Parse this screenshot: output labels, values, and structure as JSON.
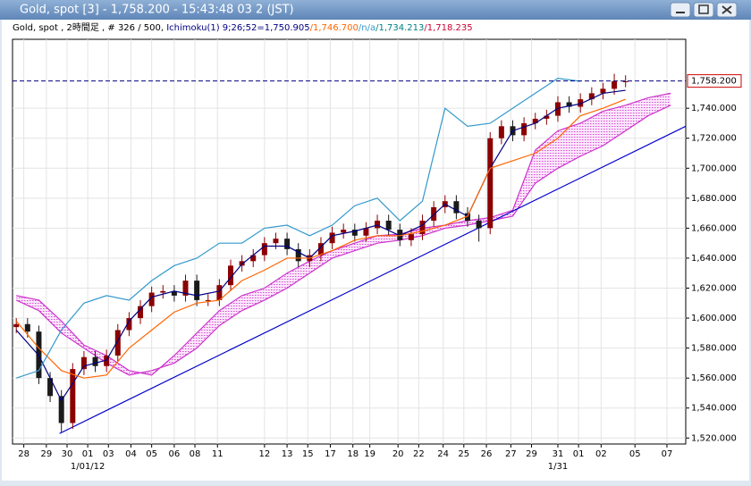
{
  "window_title": "Gold, spot [3] - 1,758.200 - 15:43:48  03 2 (JST)",
  "chart_data": {
    "type": "candlestick",
    "info": [
      {
        "text": "Gold, spot , 2時間足 , # 326 / 500, ",
        "color": "#000000"
      },
      {
        "text": "Ichimoku(1) 9;26;52=1,750.905",
        "color": "#000080"
      },
      {
        "text": "/1,746.700",
        "color": "#ff6600"
      },
      {
        "text": "/n/a",
        "color": "#3399cc"
      },
      {
        "text": "/1,734.213",
        "color": "#008080"
      },
      {
        "text": "/1,718.235",
        "color": "#cc0033"
      }
    ],
    "xlim": [
      -2,
      356
    ],
    "ylim": [
      1516,
      1786
    ],
    "xticks": [
      {
        "value": 4,
        "label": "28"
      },
      {
        "value": 16,
        "label": "29"
      },
      {
        "value": 27,
        "label": "30"
      },
      {
        "value": 38,
        "label": "01"
      },
      {
        "value": 49,
        "label": "03"
      },
      {
        "value": 61,
        "label": "04"
      },
      {
        "value": 72,
        "label": "05"
      },
      {
        "value": 84,
        "label": "06"
      },
      {
        "value": 95,
        "label": "08"
      },
      {
        "value": 107,
        "label": "11"
      },
      {
        "value": 132,
        "label": "12"
      },
      {
        "value": 144,
        "label": "13"
      },
      {
        "value": 155,
        "label": "15"
      },
      {
        "value": 167,
        "label": "17"
      },
      {
        "value": 179,
        "label": "18"
      },
      {
        "value": 188,
        "label": "19"
      },
      {
        "value": 203,
        "label": "20"
      },
      {
        "value": 214,
        "label": "22"
      },
      {
        "value": 227,
        "label": "24"
      },
      {
        "value": 238,
        "label": "25"
      },
      {
        "value": 250,
        "label": "26"
      },
      {
        "value": 263,
        "label": "27"
      },
      {
        "value": 274,
        "label": "29"
      },
      {
        "value": 288,
        "label": "31"
      },
      {
        "value": 299,
        "label": "01"
      },
      {
        "value": 311,
        "label": "02"
      },
      {
        "value": 329,
        "label": "05"
      },
      {
        "value": 346,
        "label": "07"
      }
    ],
    "xticks_major": [
      {
        "value": 38,
        "label": "1/01/12"
      },
      {
        "value": 288,
        "label": "1/31"
      }
    ],
    "yticks": [
      {
        "value": 1520,
        "label": "1,520.000"
      },
      {
        "value": 1540,
        "label": "1,540.000"
      },
      {
        "value": 1560,
        "label": "1,560.000"
      },
      {
        "value": 1580,
        "label": "1,580.000"
      },
      {
        "value": 1600,
        "label": "1,600.000"
      },
      {
        "value": 1620,
        "label": "1,620.000"
      },
      {
        "value": 1640,
        "label": "1,640.000"
      },
      {
        "value": 1660,
        "label": "1,660.000"
      },
      {
        "value": 1680,
        "label": "1,680.000"
      },
      {
        "value": 1700,
        "label": "1,700.000"
      },
      {
        "value": 1720,
        "label": "1,720.000"
      },
      {
        "value": 1740,
        "label": "1,740.000"
      }
    ],
    "grid": true,
    "last_price": {
      "value": 1758.2,
      "label": "1,758.200",
      "color": "#000080"
    },
    "candles": {
      "up_color": "#8b0000",
      "down_color": "#1a1a1a",
      "x": [
        0,
        6,
        12,
        18,
        24,
        30,
        36,
        42,
        48,
        54,
        60,
        66,
        72,
        78,
        84,
        90,
        96,
        102,
        108,
        114,
        120,
        126,
        132,
        138,
        144,
        150,
        156,
        162,
        168,
        174,
        180,
        186,
        192,
        198,
        204,
        210,
        216,
        222,
        228,
        234,
        240,
        246,
        252,
        258,
        264,
        270,
        276,
        282,
        288,
        294,
        300,
        306,
        312,
        318,
        324
      ],
      "open": [
        1594,
        1596,
        1591,
        1560,
        1548,
        1530,
        1566,
        1574,
        1568,
        1575,
        1592,
        1600,
        1608,
        1617,
        1618,
        1615,
        1625,
        1612,
        1612,
        1622,
        1635,
        1638,
        1642,
        1650,
        1653,
        1646,
        1638,
        1642,
        1650,
        1657,
        1659,
        1655,
        1660,
        1665,
        1659,
        1652,
        1656,
        1665,
        1674,
        1678,
        1670,
        1665,
        1660,
        1720,
        1728,
        1722,
        1730,
        1733,
        1735,
        1744,
        1741,
        1746,
        1750,
        1753,
        1758
      ],
      "high": [
        1600,
        1600,
        1595,
        1564,
        1552,
        1570,
        1578,
        1578,
        1579,
        1596,
        1604,
        1612,
        1621,
        1622,
        1622,
        1629,
        1629,
        1616,
        1626,
        1639,
        1642,
        1646,
        1654,
        1657,
        1657,
        1650,
        1646,
        1654,
        1661,
        1663,
        1663,
        1664,
        1669,
        1669,
        1663,
        1660,
        1669,
        1678,
        1682,
        1682,
        1674,
        1669,
        1724,
        1732,
        1732,
        1734,
        1737,
        1739,
        1748,
        1748,
        1750,
        1754,
        1757,
        1763,
        1762
      ],
      "low": [
        1590,
        1587,
        1556,
        1544,
        1524,
        1526,
        1562,
        1564,
        1564,
        1571,
        1588,
        1596,
        1604,
        1613,
        1611,
        1611,
        1608,
        1608,
        1608,
        1618,
        1631,
        1634,
        1638,
        1646,
        1642,
        1634,
        1634,
        1638,
        1646,
        1653,
        1651,
        1651,
        1656,
        1655,
        1648,
        1648,
        1652,
        1661,
        1670,
        1666,
        1661,
        1651,
        1656,
        1716,
        1718,
        1718,
        1726,
        1729,
        1731,
        1737,
        1737,
        1742,
        1746,
        1749,
        1754
      ],
      "close": [
        1596,
        1591,
        1560,
        1548,
        1530,
        1566,
        1574,
        1568,
        1575,
        1592,
        1600,
        1608,
        1617,
        1618,
        1615,
        1625,
        1612,
        1612,
        1622,
        1635,
        1638,
        1642,
        1650,
        1653,
        1646,
        1638,
        1642,
        1650,
        1657,
        1659,
        1655,
        1660,
        1665,
        1659,
        1652,
        1656,
        1665,
        1674,
        1678,
        1670,
        1665,
        1660,
        1720,
        1728,
        1722,
        1730,
        1733,
        1735,
        1744,
        1741,
        1746,
        1750,
        1753,
        1758,
        1758
      ]
    },
    "series": [
      {
        "color": "#000080",
        "x": [
          0,
          12,
          24,
          36,
          48,
          60,
          72,
          84,
          96,
          108,
          120,
          132,
          144,
          156,
          168,
          180,
          192,
          204,
          216,
          228,
          240,
          252,
          264,
          276,
          288,
          300,
          312,
          324
        ],
        "values": [
          1592,
          1575,
          1545,
          1568,
          1572,
          1598,
          1614,
          1618,
          1615,
          1618,
          1636,
          1648,
          1648,
          1640,
          1655,
          1658,
          1662,
          1655,
          1662,
          1676,
          1668,
          1700,
          1725,
          1730,
          1740,
          1743,
          1750,
          1752
        ]
      },
      {
        "color": "#ff6600",
        "x": [
          0,
          12,
          24,
          36,
          48,
          60,
          72,
          84,
          96,
          108,
          120,
          132,
          144,
          156,
          168,
          180,
          192,
          204,
          216,
          228,
          240,
          252,
          264,
          276,
          288,
          300,
          312,
          324
        ],
        "values": [
          1598,
          1580,
          1565,
          1560,
          1562,
          1580,
          1592,
          1604,
          1610,
          1612,
          1625,
          1632,
          1640,
          1640,
          1645,
          1652,
          1655,
          1655,
          1658,
          1662,
          1668,
          1700,
          1705,
          1710,
          1720,
          1735,
          1740,
          1746
        ]
      },
      {
        "color": "#3399cc",
        "x": [
          0,
          12,
          24,
          36,
          48,
          60,
          72,
          84,
          96,
          108,
          120,
          132,
          144,
          156,
          168,
          180,
          192,
          204,
          216,
          228,
          240,
          252,
          264,
          276,
          288,
          300
        ],
        "values": [
          1560,
          1565,
          1592,
          1610,
          1615,
          1612,
          1625,
          1635,
          1640,
          1650,
          1650,
          1660,
          1662,
          1655,
          1662,
          1675,
          1680,
          1665,
          1678,
          1740,
          1728,
          1730,
          1740,
          1750,
          1760,
          1758
        ]
      }
    ],
    "cloud": {
      "color": "#cc33cc",
      "x": [
        0,
        12,
        24,
        36,
        48,
        60,
        72,
        84,
        96,
        108,
        120,
        132,
        144,
        156,
        168,
        180,
        192,
        204,
        216,
        228,
        240,
        252,
        264,
        276,
        288,
        300,
        312,
        324,
        336,
        348
      ],
      "span_a": [
        1615,
        1612,
        1598,
        1582,
        1575,
        1565,
        1562,
        1575,
        1590,
        1605,
        1615,
        1620,
        1630,
        1638,
        1645,
        1650,
        1655,
        1656,
        1660,
        1662,
        1665,
        1667,
        1672,
        1712,
        1725,
        1730,
        1738,
        1742,
        1747,
        1750
      ],
      "span_b": [
        1612,
        1605,
        1590,
        1580,
        1570,
        1562,
        1565,
        1570,
        1580,
        1595,
        1605,
        1612,
        1620,
        1630,
        1640,
        1645,
        1650,
        1652,
        1655,
        1660,
        1662,
        1665,
        1668,
        1690,
        1700,
        1708,
        1715,
        1725,
        1735,
        1742
      ]
    },
    "trend_line": {
      "color": "#0000cc",
      "x": [
        23,
        356
      ],
      "values": [
        1523,
        1728
      ]
    }
  }
}
